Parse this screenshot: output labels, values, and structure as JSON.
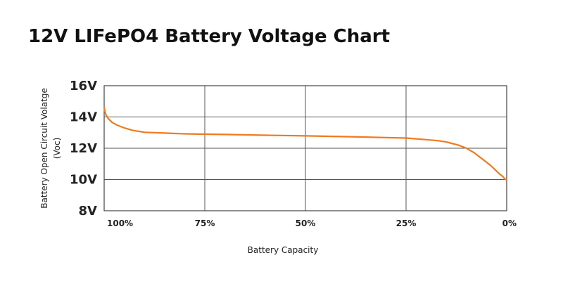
{
  "chart_data": {
    "type": "line",
    "title": "12V LIFePO4 Battery Voltage Chart",
    "xlabel": "Battery Capacity",
    "ylabel_line1": "Battery Open Circuit Volatge",
    "ylabel_line2": "(Voc)",
    "x_tick_labels": [
      "100%",
      "75%",
      "50%",
      "25%",
      "0%"
    ],
    "x_tick_values": [
      100,
      75,
      50,
      25,
      0
    ],
    "xlim": [
      100,
      0
    ],
    "y_tick_labels": [
      "16V",
      "14V",
      "12V",
      "10V",
      "8V"
    ],
    "y_tick_values": [
      16,
      14,
      12,
      10,
      8
    ],
    "ylim": [
      8,
      16
    ],
    "grid": true,
    "series": [
      {
        "color": "#F07A1E",
        "x": [
          100,
          99.8,
          99.5,
          99,
          98,
          97,
          95,
          93,
          90,
          85,
          80,
          75,
          70,
          60,
          50,
          40,
          30,
          25,
          20,
          17,
          15,
          12,
          10,
          8,
          6,
          4,
          3,
          2,
          1,
          0.5,
          0
        ],
        "y": [
          14.6,
          14.35,
          14.1,
          13.9,
          13.65,
          13.5,
          13.3,
          13.15,
          13.02,
          12.97,
          12.92,
          12.9,
          12.88,
          12.83,
          12.79,
          12.74,
          12.68,
          12.65,
          12.55,
          12.48,
          12.4,
          12.2,
          12.0,
          11.7,
          11.3,
          10.9,
          10.65,
          10.4,
          10.2,
          10.05,
          9.95
        ]
      }
    ]
  }
}
